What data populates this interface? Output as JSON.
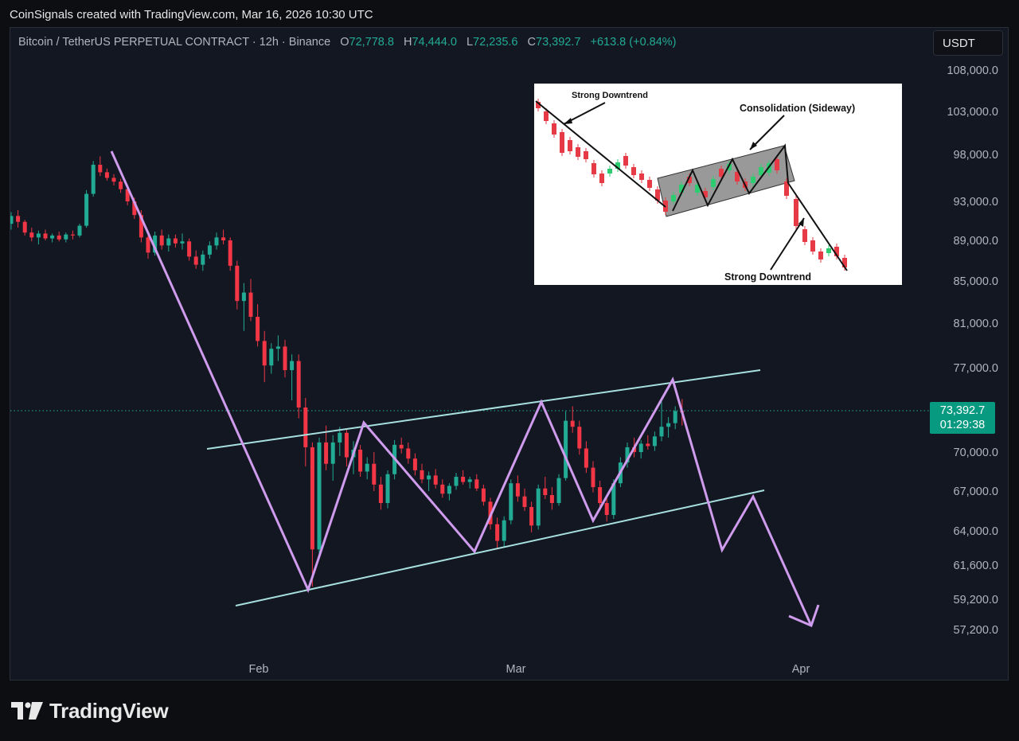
{
  "caption": "CoinSignals created with TradingView.com, Mar 16, 2026 10:30 UTC",
  "header": {
    "symbol": "Bitcoin / TetherUS PERPETUAL CONTRACT · 12h · Binance",
    "open_label": "O",
    "open": "72,778.8",
    "high_label": "H",
    "high": "74,444.0",
    "low_label": "L",
    "low": "72,235.6",
    "close_label": "C",
    "close": "73,392.7",
    "change": "+613.8 (+0.84%)"
  },
  "currency_button": "USDT",
  "price_tag": {
    "price": "73,392.7",
    "countdown": "01:29:38"
  },
  "brand": {
    "name": "TradingView",
    "logo_icon": "tradingview-logo-icon"
  },
  "colors": {
    "up": "#22ab94",
    "down": "#f23645",
    "pattern": "#cf9bed",
    "channel": "#a8e0e0",
    "background": "#131722"
  },
  "inset": {
    "label_top": "Strong Downtrend",
    "label_consolidation": "Consolidation (Sideway)",
    "label_bottom": "Strong Downtrend"
  },
  "chart_data": {
    "type": "candlestick",
    "symbol": "Bitcoin / TetherUS PERPETUAL CONTRACT",
    "interval": "12h",
    "exchange": "Binance",
    "y_axis_ticks": [
      108000,
      103000,
      98000,
      93000,
      89000,
      85000,
      81000,
      77000,
      70000,
      67000,
      64000,
      61600,
      59200,
      57200
    ],
    "y_axis_tick_labels": [
      "108,000.0",
      "103,000.0",
      "98,000.0",
      "93,000.0",
      "89,000.0",
      "85,000.0",
      "81,000.0",
      "77,000.0",
      "70,000.0",
      "67,000.0",
      "64,000.0",
      "61,600.0",
      "59,200.0",
      "57,200.0"
    ],
    "x_axis_ticks": [
      "Feb",
      "Mar",
      "Apr"
    ],
    "last_price": 73392.7,
    "ohlc": {
      "open": 72778.8,
      "high": 74444.0,
      "low": 72235.6,
      "close": 73392.7,
      "change": 613.8,
      "change_pct": 0.84
    },
    "candle_start_date": "2026-01-10",
    "candles": [
      [
        90700,
        91900,
        90100,
        91500
      ],
      [
        91500,
        92100,
        90300,
        90900
      ],
      [
        90900,
        91100,
        89500,
        89800
      ],
      [
        89800,
        90300,
        88900,
        89300
      ],
      [
        89300,
        90000,
        88600,
        89700
      ],
      [
        89700,
        90100,
        89000,
        89200
      ],
      [
        89200,
        89700,
        88800,
        89500
      ],
      [
        89500,
        89900,
        88900,
        89100
      ],
      [
        89100,
        89800,
        88800,
        89600
      ],
      [
        89600,
        90000,
        89100,
        89500
      ],
      [
        89500,
        90700,
        89300,
        90500
      ],
      [
        90500,
        94200,
        90300,
        93800
      ],
      [
        93800,
        97300,
        93500,
        96900
      ],
      [
        96900,
        97800,
        95700,
        96100
      ],
      [
        96100,
        96500,
        95200,
        95500
      ],
      [
        95500,
        95900,
        94700,
        95100
      ],
      [
        95100,
        95400,
        93900,
        94300
      ],
      [
        94300,
        94800,
        92600,
        93000
      ],
      [
        93000,
        93400,
        91200,
        91600
      ],
      [
        91600,
        92100,
        88800,
        89300
      ],
      [
        89300,
        89600,
        87200,
        87800
      ],
      [
        87800,
        89900,
        87500,
        89500
      ],
      [
        89500,
        90100,
        88100,
        88500
      ],
      [
        88500,
        89600,
        87900,
        89200
      ],
      [
        89200,
        89600,
        88300,
        88700
      ],
      [
        88700,
        89700,
        88100,
        88900
      ],
      [
        88900,
        89200,
        87000,
        87400
      ],
      [
        87400,
        88000,
        86200,
        86600
      ],
      [
        86600,
        88000,
        86000,
        87600
      ],
      [
        87600,
        88900,
        87200,
        88500
      ],
      [
        88500,
        89800,
        88100,
        89300
      ],
      [
        89300,
        90100,
        88600,
        89000
      ],
      [
        89000,
        89300,
        86000,
        86500
      ],
      [
        86500,
        87000,
        82300,
        83100
      ],
      [
        83100,
        84800,
        80300,
        83900
      ],
      [
        83900,
        85200,
        81200,
        81600
      ],
      [
        81600,
        82800,
        78900,
        79400
      ],
      [
        79400,
        80300,
        75800,
        77200
      ],
      [
        77200,
        79200,
        76500,
        78700
      ],
      [
        78700,
        79900,
        77600,
        78900
      ],
      [
        78900,
        79500,
        76200,
        76800
      ],
      [
        76800,
        78200,
        74300,
        77600
      ],
      [
        77600,
        78200,
        72800,
        73700
      ],
      [
        73700,
        74500,
        68900,
        70400
      ],
      [
        70400,
        70800,
        60100,
        62700
      ],
      [
        62700,
        71200,
        62100,
        70800
      ],
      [
        70800,
        72200,
        68600,
        69100
      ],
      [
        69100,
        71400,
        67800,
        70800
      ],
      [
        70800,
        72100,
        69700,
        71600
      ],
      [
        71600,
        71900,
        68900,
        69600
      ],
      [
        69600,
        70900,
        68300,
        70200
      ],
      [
        70200,
        70600,
        68100,
        68500
      ],
      [
        68500,
        69600,
        67900,
        69100
      ],
      [
        69100,
        70000,
        67000,
        67500
      ],
      [
        67500,
        68100,
        65600,
        66100
      ],
      [
        66100,
        68600,
        65700,
        68300
      ],
      [
        68300,
        71000,
        67900,
        70600
      ],
      [
        70600,
        71200,
        69900,
        70300
      ],
      [
        70300,
        70800,
        69100,
        69500
      ],
      [
        69500,
        69900,
        68200,
        68600
      ],
      [
        68600,
        69100,
        67600,
        67900
      ],
      [
        67900,
        68500,
        67000,
        68200
      ],
      [
        68200,
        68700,
        67200,
        67500
      ],
      [
        67500,
        67900,
        66500,
        66800
      ],
      [
        66800,
        67600,
        66300,
        67400
      ],
      [
        67400,
        68400,
        67100,
        68100
      ],
      [
        68100,
        68600,
        67500,
        67700
      ],
      [
        67700,
        68100,
        67200,
        67900
      ],
      [
        67900,
        68300,
        67000,
        67200
      ],
      [
        67200,
        67500,
        65900,
        66200
      ],
      [
        66200,
        66500,
        64100,
        64500
      ],
      [
        64500,
        65000,
        62800,
        63300
      ],
      [
        63300,
        65100,
        62900,
        64800
      ],
      [
        64800,
        67900,
        64500,
        67600
      ],
      [
        67600,
        68200,
        66200,
        66600
      ],
      [
        66600,
        67200,
        65500,
        65800
      ],
      [
        65800,
        66200,
        63900,
        64400
      ],
      [
        64400,
        67500,
        64100,
        67200
      ],
      [
        67200,
        68100,
        66400,
        66700
      ],
      [
        66700,
        67300,
        65600,
        66100
      ],
      [
        66100,
        68300,
        65900,
        68000
      ],
      [
        68000,
        73400,
        67800,
        72600
      ],
      [
        72600,
        73800,
        71600,
        72100
      ],
      [
        72100,
        72600,
        69800,
        70300
      ],
      [
        70300,
        70900,
        68400,
        68800
      ],
      [
        68800,
        69300,
        66900,
        67300
      ],
      [
        67300,
        67800,
        65800,
        66100
      ],
      [
        66100,
        66600,
        64700,
        65200
      ],
      [
        65200,
        67900,
        64900,
        67600
      ],
      [
        67600,
        69600,
        67300,
        69200
      ],
      [
        69200,
        70800,
        68800,
        70400
      ],
      [
        70400,
        71200,
        69600,
        70000
      ],
      [
        70000,
        71000,
        69500,
        70700
      ],
      [
        70700,
        71400,
        70200,
        70500
      ],
      [
        70500,
        71700,
        70100,
        71300
      ],
      [
        71300,
        74200,
        70900,
        72100
      ],
      [
        72100,
        72900,
        71200,
        72400
      ],
      [
        72400,
        73800,
        71900,
        73400
      ],
      [
        73400,
        74400,
        72200,
        73300
      ]
    ]
  }
}
